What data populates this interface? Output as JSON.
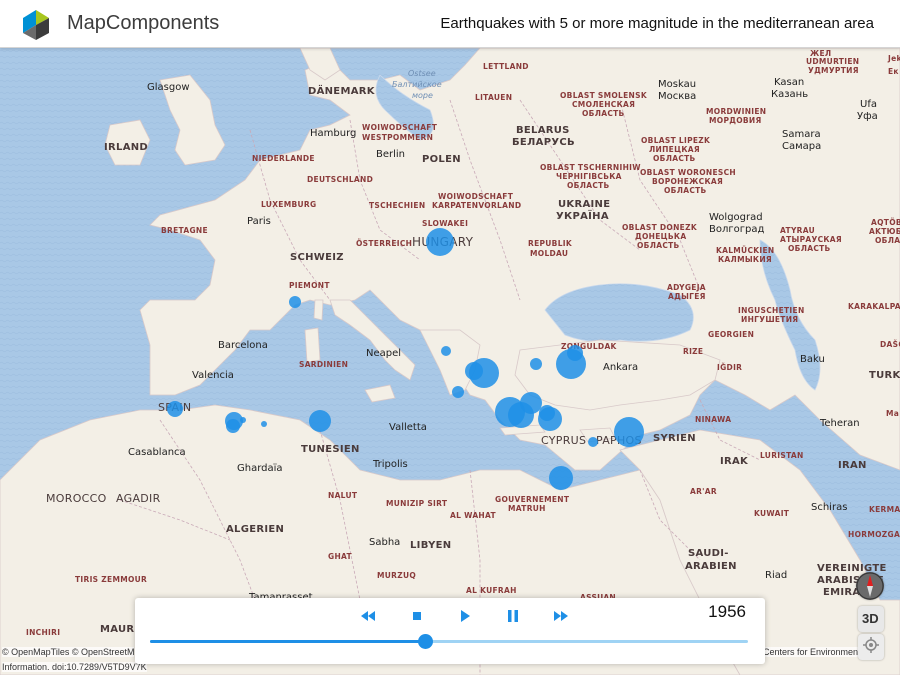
{
  "header": {
    "logo_text": "MapComponents",
    "title": "Earthquakes with 5 or more magnitude in the mediterranean area"
  },
  "player": {
    "year": "1956",
    "progress": 0.46,
    "buttons": [
      "rewind",
      "stop",
      "play",
      "pause",
      "fast-forward"
    ]
  },
  "controls": {
    "three_d_label": "3D"
  },
  "attribution": {
    "line1": "© OpenMapTiles © OpenStreetM",
    "line1_right": "Centers for Environment",
    "line2": "Information. doi:10.7289/V5TD9V7K"
  },
  "colors": {
    "water": "#a9c8e6",
    "land": "#f3efe6",
    "quake": "#1e8fe6",
    "accent": "#1e8fe6"
  },
  "labels": {
    "countries": [
      "DÄNEMARK",
      "IRLAND",
      "NIEDERLANDE",
      "DEUTSCHLAND",
      "POLEN",
      "BELARUS\nБЕЛАРУСЬ",
      "LUXEMBURG",
      "TSCHECHIEN",
      "SLOWAKEI",
      "HUNGARY",
      "UKRAINE\nУКРАЇНА",
      "ÖSTERREICH",
      "REPUBLIK MOLDAU",
      "SCHWEIZ",
      "SPAIN",
      "TUNESIEN",
      "ALGERIEN",
      "LIBYEN",
      "SYRIEN",
      "IRAK",
      "IRAN",
      "CYPRUS",
      "PAPHOS",
      "GEORGIEN",
      "KUWAIT",
      "SAUDI-\nARABIEN",
      "VEREINIGTE\nARABISCHE\nEMIRA",
      "TURKM",
      "LITAUEN",
      "LETTLAND",
      "MOROCCO",
      "AGADIR",
      "MAURETANIE"
    ],
    "cities": [
      "Glasgow",
      "Hamburg",
      "Berlin",
      "Paris",
      "Barcelona",
      "Valencia",
      "Neapel",
      "Valletta",
      "Tripolis",
      "Ankara",
      "Moskau\nМосква",
      "Kasan\nКазань",
      "Samara\nСамара",
      "Ufa\nУфа",
      "Wolgograd\nВолгоград",
      "Baku",
      "Teheran",
      "Schiras",
      "Riad",
      "Casablanca",
      "Ghardaïa",
      "Sabha",
      "Tamanrasset"
    ],
    "regions": [
      "WOIWODSCHAFT\nWESTPOMMERN",
      "OBLAST SMOLENSK\nСМОЛЕНСКАЯ\nОБЛАСТЬ",
      "MORDWINIEN\nМОРДОВИЯ",
      "OBLAST LIPEZK\nЛИПЕЦКАЯ\nОБЛАСТЬ",
      "OBLAST TSCHERNIHIW\nЧЕРНІГІВСЬКА\nОБЛАСТЬ",
      "OBLAST WORONESCH\nВОРОНЕЖСКАЯ\nОБЛАСТЬ",
      "WOIWODSCHAFT\nKARPATENVORLAND",
      "OBLAST DONEZK\nДОНЕЦЬКА\nОБЛАСТЬ",
      "KALMÜCKIEN\nКАЛМЫКИЯ",
      "ADYGEJA\nАДЫГЕЯ",
      "INGUSCHETIEN\nИНГУШЕТИЯ",
      "BRETAGNE",
      "PIEMONT",
      "SARDINIEN",
      "ZONGULDAK",
      "RIZE",
      "IĞDIR",
      "NINAWA",
      "LURISTAN",
      "KERMAN",
      "HORMOZGAN",
      "NALUT",
      "MUNIZIP SIRT",
      "AL WAHAT",
      "GOUVERNEMENT\nMATRUH",
      "GHAT",
      "MURZUQ",
      "AL KUFRAH",
      "AR'AR",
      "INCHIRI",
      "TIRIS ZEMMOUR",
      "ASSUAN",
      "KARAKALPAK",
      "DAŠO",
      "AQTÖBE\nAKTЮБИН\nОБЛАСТ",
      "ATYRAU\nАТЫРАУСКАЯ\nОБЛАСТЬ",
      "ЖЕЛ",
      "UDMURTIEN\nУДМУРТИЯ",
      "Jek\nЕк",
      "Ma"
    ],
    "seas": [
      "Ostsee\nБалтийское\nморе"
    ]
  }
}
